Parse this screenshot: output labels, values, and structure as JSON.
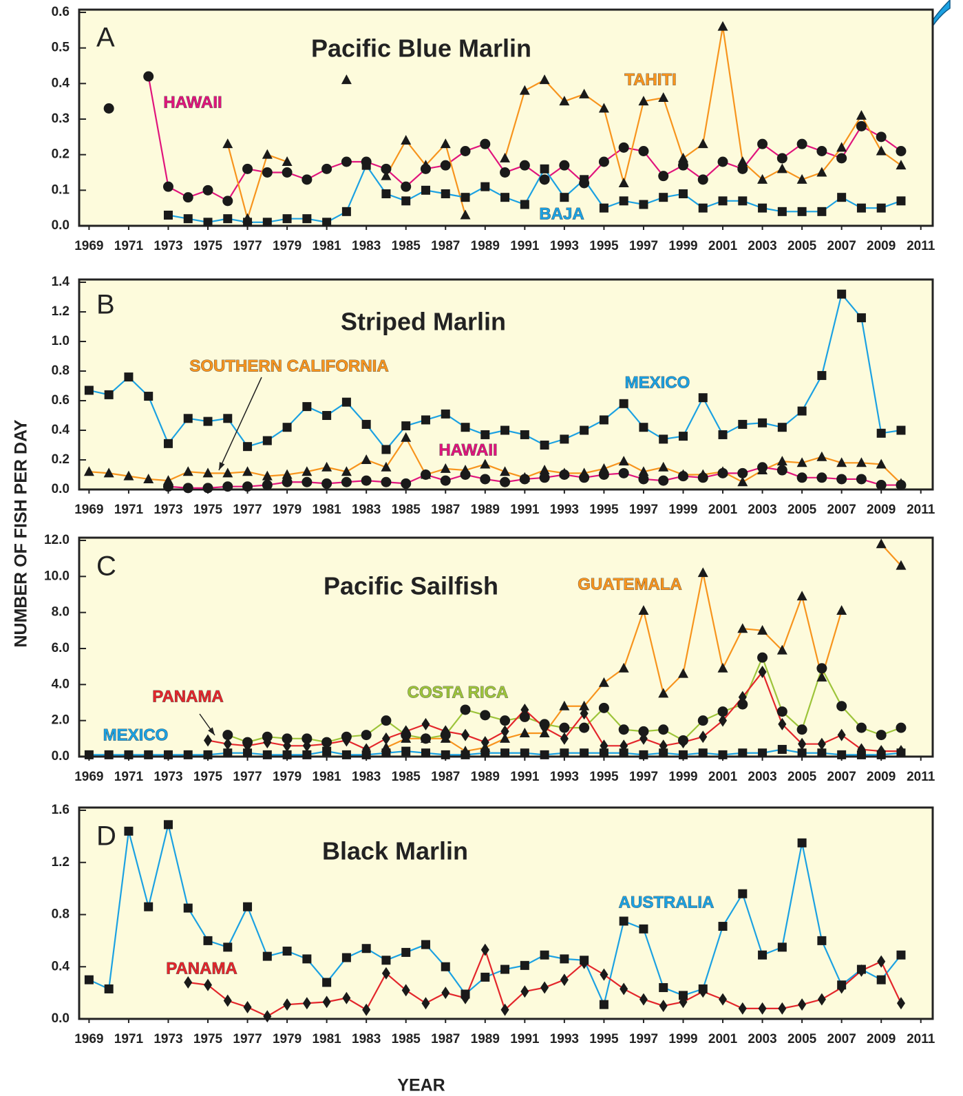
{
  "ylabel": "NUMBER OF FISH PER DAY",
  "xlabel": "YEAR",
  "marker_color": "#1a1a1a",
  "background": "#fdfbdc",
  "chart_data": [
    {
      "type": "line",
      "panel": "A",
      "title": "Pacific Blue Marlin",
      "x": [
        1969,
        1970,
        1971,
        1972,
        1973,
        1974,
        1975,
        1976,
        1977,
        1978,
        1979,
        1980,
        1981,
        1982,
        1983,
        1984,
        1985,
        1986,
        1987,
        1988,
        1989,
        1990,
        1991,
        1992,
        1993,
        1994,
        1995,
        1996,
        1997,
        1998,
        1999,
        2000,
        2001,
        2002,
        2003,
        2004,
        2005,
        2006,
        2007,
        2008,
        2009,
        2010
      ],
      "xlim": [
        1968.5,
        2011.6
      ],
      "xticks": [
        1969,
        1971,
        1973,
        1975,
        1977,
        1979,
        1981,
        1983,
        1985,
        1987,
        1989,
        1991,
        1993,
        1995,
        1997,
        1999,
        2001,
        2003,
        2005,
        2007,
        2009,
        2011
      ],
      "ylim": [
        0,
        0.6
      ],
      "yticks": [
        {
          "value": 0,
          "label": "0.0"
        },
        0.1,
        0.2,
        0.3,
        0.4,
        0.5,
        0.6
      ],
      "series": [
        {
          "name": "HAWAII",
          "color": "#e0147c",
          "marker": "circle",
          "values": [
            null,
            0.33,
            null,
            0.42,
            0.11,
            0.08,
            0.1,
            0.07,
            0.16,
            0.15,
            0.15,
            0.13,
            0.16,
            0.18,
            0.18,
            0.16,
            0.11,
            0.16,
            0.17,
            0.21,
            0.23,
            0.15,
            0.17,
            0.13,
            0.17,
            0.12,
            0.18,
            0.22,
            0.21,
            0.14,
            0.17,
            0.13,
            0.18,
            0.16,
            0.23,
            0.19,
            0.23,
            0.21,
            0.19,
            0.28,
            0.25,
            0.21
          ]
        },
        {
          "name": "TAHITI",
          "color": "#f7941d",
          "marker": "triangle",
          "values": [
            null,
            null,
            null,
            null,
            null,
            null,
            null,
            0.23,
            0.02,
            0.2,
            0.18,
            null,
            null,
            0.41,
            null,
            0.14,
            0.24,
            0.17,
            0.23,
            0.03,
            null,
            0.19,
            0.38,
            0.41,
            0.35,
            0.37,
            0.33,
            0.12,
            0.35,
            0.36,
            0.19,
            0.23,
            0.56,
            0.18,
            0.13,
            0.16,
            0.13,
            0.15,
            0.22,
            0.31,
            0.21,
            0.17
          ]
        },
        {
          "name": "BAJA",
          "color": "#1ba1e2",
          "marker": "square",
          "values": [
            null,
            null,
            null,
            null,
            0.03,
            0.02,
            0.01,
            0.02,
            0.01,
            0.01,
            0.02,
            0.02,
            0.01,
            0.04,
            0.17,
            0.09,
            0.07,
            0.1,
            0.09,
            0.08,
            0.11,
            0.08,
            0.06,
            0.16,
            0.08,
            0.13,
            0.05,
            0.07,
            0.06,
            0.08,
            0.09,
            0.05,
            0.07,
            0.07,
            0.05,
            0.04,
            0.04,
            0.04,
            0.08,
            0.05,
            0.05,
            0.07
          ]
        }
      ]
    },
    {
      "type": "line",
      "panel": "B",
      "title": "Striped Marlin",
      "x": [
        1969,
        1970,
        1971,
        1972,
        1973,
        1974,
        1975,
        1976,
        1977,
        1978,
        1979,
        1980,
        1981,
        1982,
        1983,
        1984,
        1985,
        1986,
        1987,
        1988,
        1989,
        1990,
        1991,
        1992,
        1993,
        1994,
        1995,
        1996,
        1997,
        1998,
        1999,
        2000,
        2001,
        2002,
        2003,
        2004,
        2005,
        2006,
        2007,
        2008,
        2009,
        2010
      ],
      "xlim": [
        1968.5,
        2011.6
      ],
      "xticks": [
        1969,
        1971,
        1973,
        1975,
        1977,
        1979,
        1981,
        1983,
        1985,
        1987,
        1989,
        1991,
        1993,
        1995,
        1997,
        1999,
        2001,
        2003,
        2005,
        2007,
        2009,
        2011
      ],
      "ylim": [
        0,
        1.4
      ],
      "yticks": [
        {
          "value": 0,
          "label": "0.0"
        },
        0.2,
        0.4,
        0.6,
        0.8,
        {
          "value": 1,
          "label": "1.0"
        },
        1.2,
        1.4
      ],
      "series": [
        {
          "name": "MEXICO",
          "color": "#1ba1e2",
          "marker": "square",
          "values": [
            0.67,
            0.64,
            0.76,
            0.63,
            0.31,
            0.48,
            0.46,
            0.48,
            0.29,
            0.33,
            0.42,
            0.56,
            0.5,
            0.59,
            0.44,
            0.27,
            0.43,
            0.47,
            0.51,
            0.42,
            0.37,
            0.4,
            0.37,
            0.3,
            0.34,
            0.4,
            0.47,
            0.58,
            0.42,
            0.34,
            0.36,
            0.62,
            0.37,
            0.44,
            0.45,
            0.42,
            0.53,
            0.77,
            1.32,
            1.16,
            0.38,
            0.4
          ]
        },
        {
          "name": "SOUTHERN CALIFORNIA",
          "color": "#f7941d",
          "marker": "triangle",
          "values": [
            0.12,
            0.11,
            0.09,
            0.07,
            0.06,
            0.12,
            0.11,
            0.11,
            0.12,
            0.09,
            0.1,
            0.12,
            0.15,
            0.12,
            0.2,
            0.15,
            0.35,
            0.1,
            0.14,
            0.13,
            0.17,
            0.12,
            0.08,
            0.13,
            0.11,
            0.11,
            0.14,
            0.19,
            0.12,
            0.15,
            0.1,
            0.1,
            0.12,
            0.05,
            0.13,
            0.19,
            0.18,
            0.22,
            0.18,
            0.18,
            0.17,
            0.04
          ]
        },
        {
          "name": "HAWAII",
          "color": "#e0147c",
          "marker": "circle",
          "values": [
            null,
            null,
            null,
            null,
            0.02,
            0.01,
            0.01,
            0.02,
            0.02,
            0.03,
            0.05,
            0.05,
            0.04,
            0.05,
            0.06,
            0.05,
            0.04,
            0.1,
            0.06,
            0.1,
            0.07,
            0.05,
            0.07,
            0.08,
            0.1,
            0.08,
            0.1,
            0.11,
            0.07,
            0.06,
            0.09,
            0.08,
            0.11,
            0.11,
            0.15,
            0.13,
            0.08,
            0.08,
            0.07,
            0.07,
            0.03,
            0.03
          ]
        }
      ]
    },
    {
      "type": "line",
      "panel": "C",
      "title": "Pacific Sailfish",
      "x": [
        1969,
        1970,
        1971,
        1972,
        1973,
        1974,
        1975,
        1976,
        1977,
        1978,
        1979,
        1980,
        1981,
        1982,
        1983,
        1984,
        1985,
        1986,
        1987,
        1988,
        1989,
        1990,
        1991,
        1992,
        1993,
        1994,
        1995,
        1996,
        1997,
        1998,
        1999,
        2000,
        2001,
        2002,
        2003,
        2004,
        2005,
        2006,
        2007,
        2008,
        2009,
        2010
      ],
      "xlim": [
        1968.5,
        2011.6
      ],
      "xticks": [
        1969,
        1971,
        1973,
        1975,
        1977,
        1979,
        1981,
        1983,
        1985,
        1987,
        1989,
        1991,
        1993,
        1995,
        1997,
        1999,
        2001,
        2003,
        2005,
        2007,
        2009,
        2011
      ],
      "ylim": [
        0,
        12
      ],
      "yticks": [
        {
          "value": 0,
          "label": "0.0"
        },
        {
          "value": 2,
          "label": "2.0"
        },
        {
          "value": 4,
          "label": "4.0"
        },
        {
          "value": 6,
          "label": "6.0"
        },
        {
          "value": 8,
          "label": "8.0"
        },
        {
          "value": 10,
          "label": "10.0"
        },
        {
          "value": 12,
          "label": "12.0"
        }
      ],
      "series": [
        {
          "name": "GUATEMALA",
          "color": "#f7941d",
          "marker": "triangle",
          "values": [
            null,
            null,
            null,
            null,
            null,
            null,
            null,
            null,
            null,
            null,
            null,
            null,
            null,
            null,
            null,
            0.5,
            1.0,
            1.0,
            1.0,
            0.3,
            0.5,
            1.0,
            1.3,
            1.3,
            2.8,
            2.8,
            4.1,
            4.9,
            8.1,
            3.5,
            4.6,
            10.2,
            4.9,
            7.1,
            7.0,
            5.9,
            8.9,
            4.4,
            8.1,
            null,
            11.8,
            10.6
          ]
        },
        {
          "name": "COSTA RICA",
          "color": "#9dc43a",
          "marker": "circle",
          "values": [
            null,
            null,
            null,
            null,
            null,
            null,
            null,
            1.2,
            0.8,
            1.1,
            1.0,
            1.0,
            0.8,
            1.1,
            1.2,
            2.0,
            1.2,
            1.0,
            1.2,
            2.6,
            2.3,
            2.0,
            2.2,
            1.8,
            1.6,
            1.6,
            2.7,
            1.5,
            1.4,
            1.5,
            0.9,
            2.0,
            2.5,
            2.9,
            5.5,
            2.5,
            1.5,
            4.9,
            2.8,
            1.6,
            1.2,
            1.6
          ]
        },
        {
          "name": "PANAMA",
          "color": "#e3262b",
          "marker": "diamond",
          "values": [
            null,
            null,
            null,
            null,
            null,
            null,
            0.9,
            0.7,
            0.6,
            0.8,
            0.6,
            0.6,
            0.7,
            0.9,
            0.4,
            1.0,
            1.4,
            1.8,
            1.4,
            1.2,
            0.8,
            1.4,
            2.6,
            1.6,
            1.0,
            2.4,
            0.6,
            0.6,
            1.0,
            0.6,
            0.8,
            1.1,
            2.0,
            3.3,
            4.7,
            1.8,
            0.7,
            0.7,
            1.2,
            0.4,
            0.3,
            0.3
          ]
        },
        {
          "name": "MEXICO",
          "color": "#1ba1e2",
          "marker": "square",
          "values": [
            0.1,
            0.1,
            0.1,
            0.1,
            0.1,
            0.1,
            0.1,
            0.2,
            0.2,
            0.1,
            0.1,
            0.1,
            0.3,
            0.1,
            0.1,
            0.2,
            0.3,
            0.2,
            0.1,
            0.1,
            0.2,
            0.2,
            0.2,
            0.1,
            0.2,
            0.2,
            0.2,
            0.2,
            0.1,
            0.2,
            0.1,
            0.2,
            0.1,
            0.2,
            0.2,
            0.4,
            0.2,
            0.2,
            0.1,
            0.1,
            0.1,
            0.2
          ]
        }
      ]
    },
    {
      "type": "line",
      "panel": "D",
      "title": "Black Marlin",
      "x": [
        1969,
        1970,
        1971,
        1972,
        1973,
        1974,
        1975,
        1976,
        1977,
        1978,
        1979,
        1980,
        1981,
        1982,
        1983,
        1984,
        1985,
        1986,
        1987,
        1988,
        1989,
        1990,
        1991,
        1992,
        1993,
        1994,
        1995,
        1996,
        1997,
        1998,
        1999,
        2000,
        2001,
        2002,
        2003,
        2004,
        2005,
        2006,
        2007,
        2008,
        2009,
        2010
      ],
      "xlim": [
        1968.5,
        2011.6
      ],
      "xticks": [
        1969,
        1971,
        1973,
        1975,
        1977,
        1979,
        1981,
        1983,
        1985,
        1987,
        1989,
        1991,
        1993,
        1995,
        1997,
        1999,
        2001,
        2003,
        2005,
        2007,
        2009,
        2011
      ],
      "ylim": [
        0,
        1.6
      ],
      "yticks": [
        {
          "value": 0,
          "label": "0.0"
        },
        0.4,
        0.8,
        1.2,
        1.6
      ],
      "series": [
        {
          "name": "AUSTRALIA",
          "color": "#1ba1e2",
          "marker": "square",
          "values": [
            0.3,
            0.23,
            1.44,
            0.86,
            1.49,
            0.85,
            0.6,
            0.55,
            0.86,
            0.48,
            0.52,
            0.46,
            0.28,
            0.47,
            0.54,
            0.45,
            0.51,
            0.57,
            0.4,
            0.19,
            0.32,
            0.38,
            0.41,
            0.49,
            0.46,
            0.45,
            0.11,
            0.75,
            0.69,
            0.24,
            0.18,
            0.23,
            0.71,
            0.96,
            0.49,
            0.55,
            1.35,
            0.6,
            0.26,
            0.38,
            0.3,
            0.49
          ]
        },
        {
          "name": "PANAMA",
          "color": "#e3262b",
          "marker": "diamond",
          "values": [
            null,
            null,
            null,
            null,
            null,
            0.28,
            0.26,
            0.14,
            0.09,
            0.02,
            0.11,
            0.12,
            0.13,
            0.16,
            0.07,
            0.35,
            0.22,
            0.12,
            0.2,
            0.16,
            0.53,
            0.07,
            0.21,
            0.24,
            0.3,
            0.43,
            0.34,
            0.23,
            0.15,
            0.1,
            0.13,
            0.21,
            0.15,
            0.08,
            0.08,
            0.08,
            0.11,
            0.15,
            0.24,
            0.37,
            0.44,
            0.12
          ]
        }
      ]
    }
  ]
}
